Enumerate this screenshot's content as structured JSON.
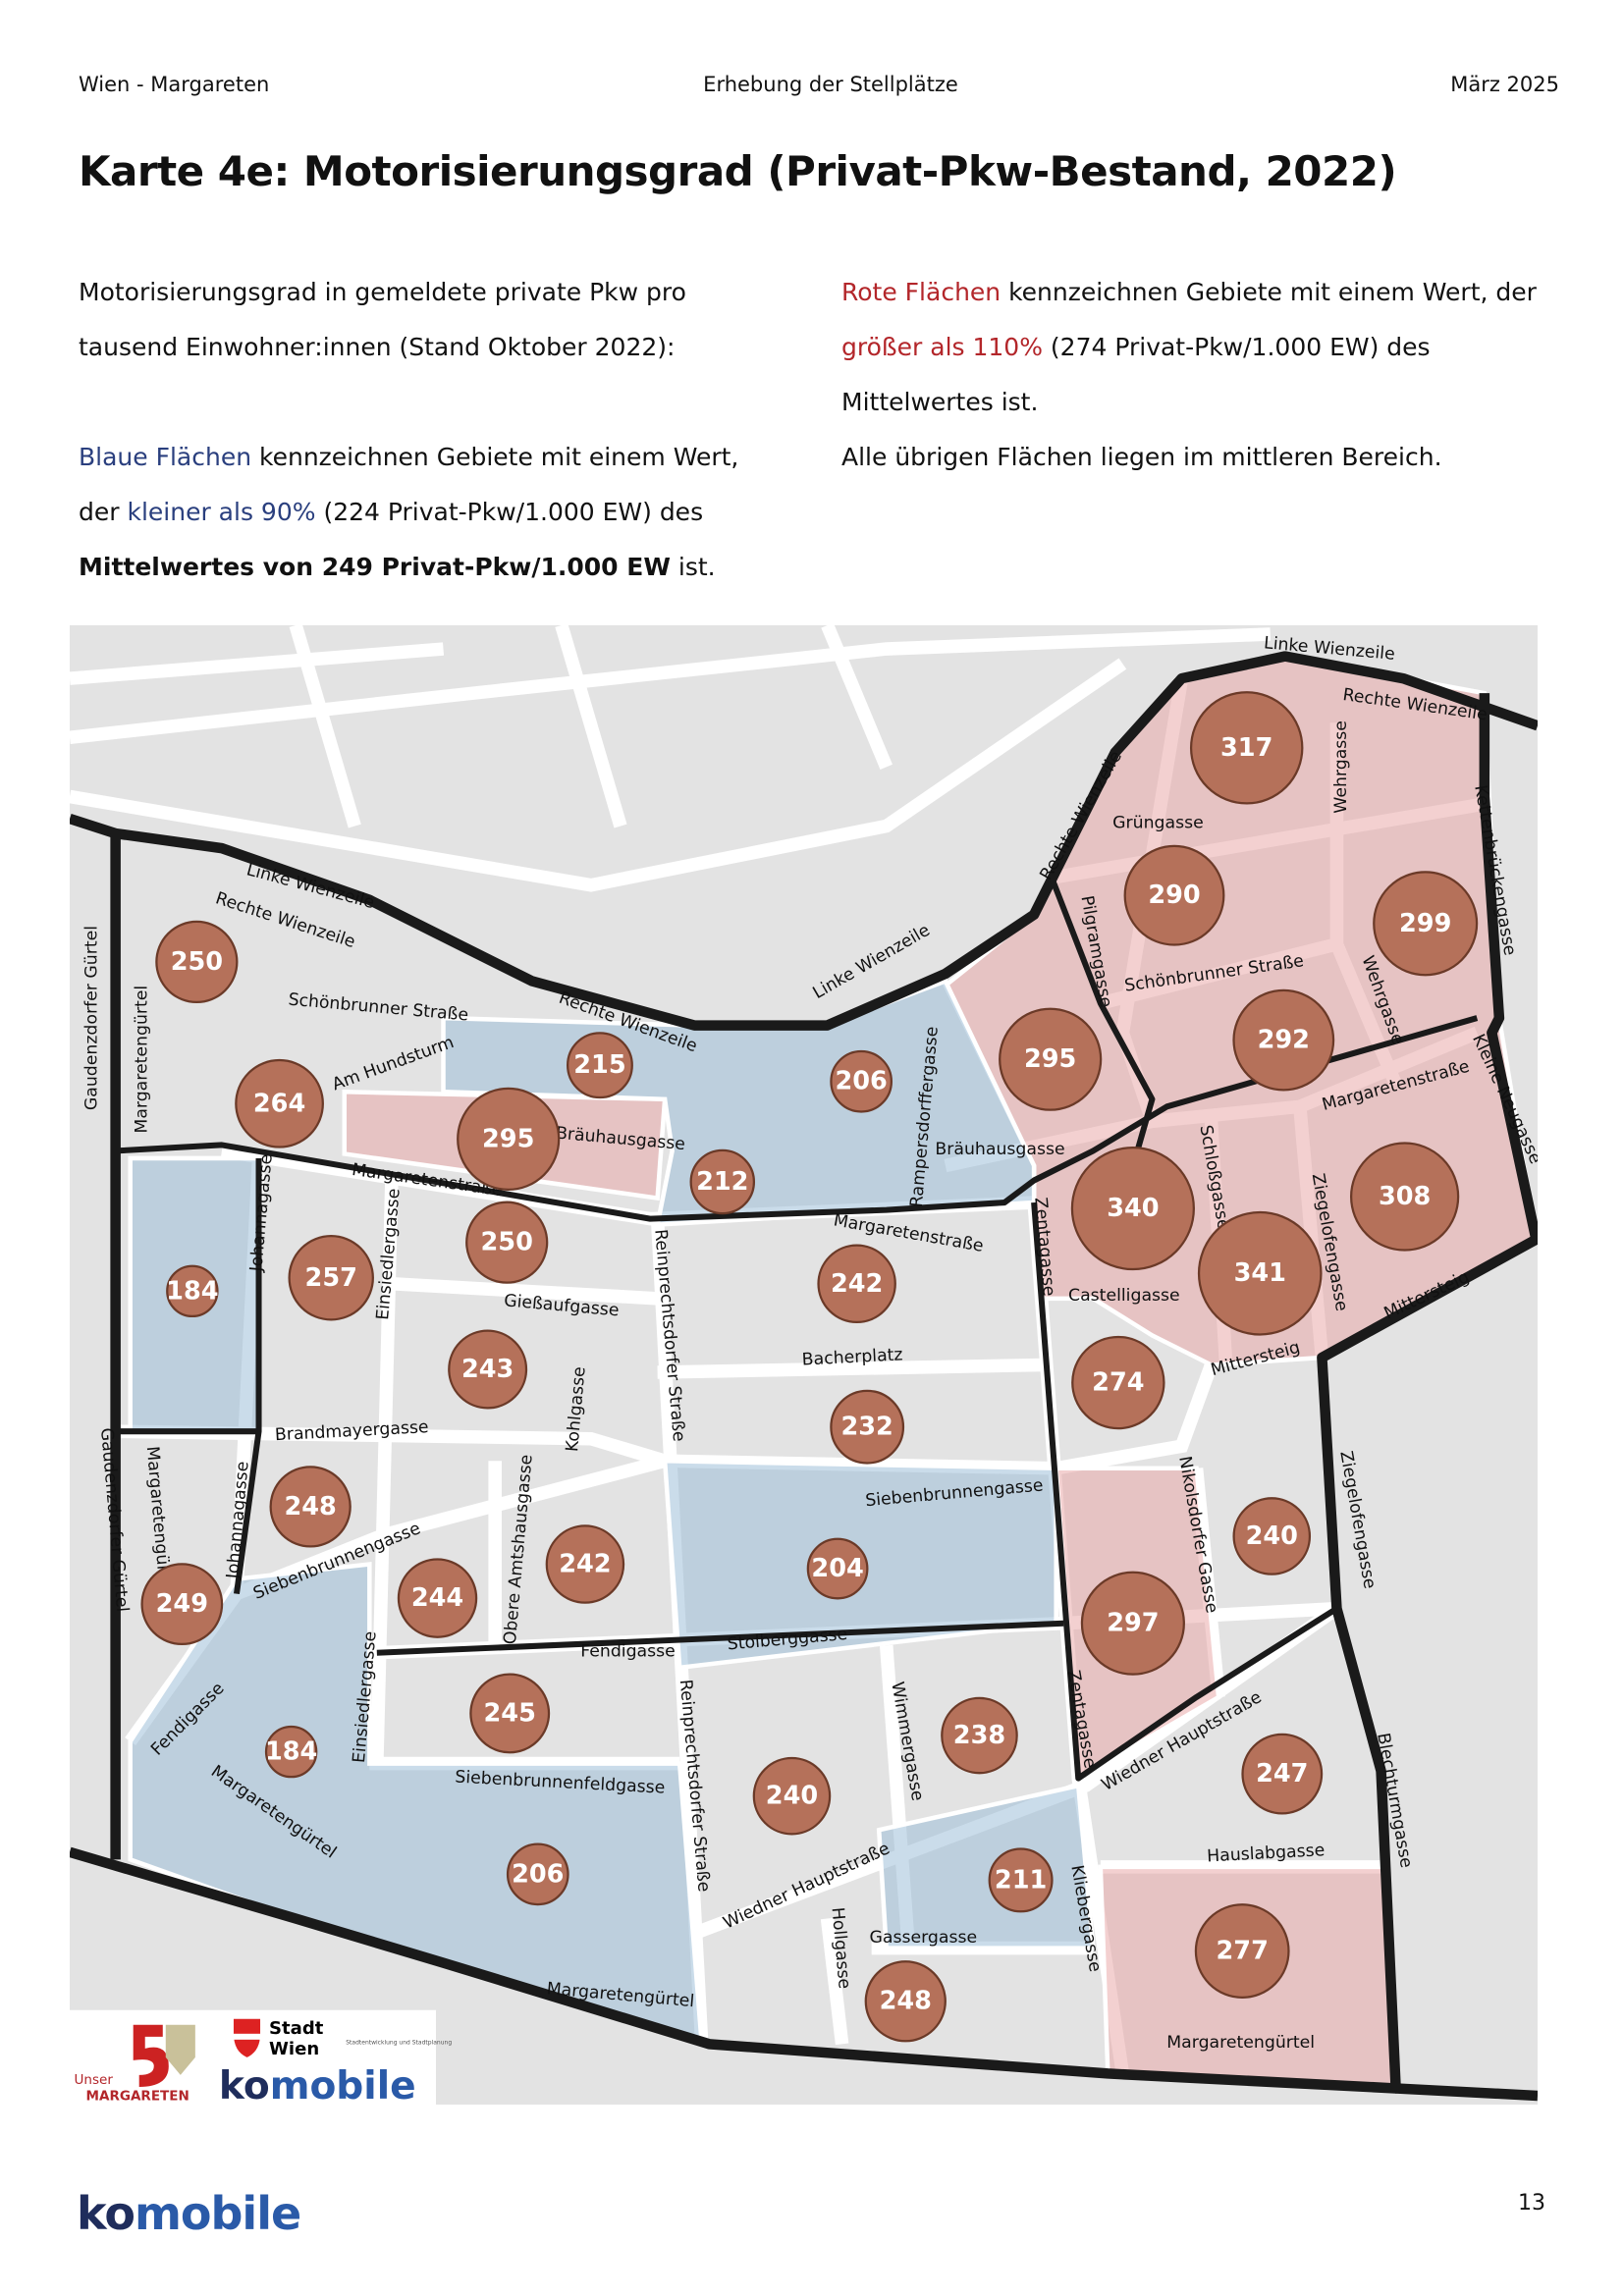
{
  "header": {
    "left": "Wien - Margareten",
    "center": "Erhebung der Stellplätze",
    "right": "März 2025"
  },
  "title": "Karte 4e: Motorisierungsgrad (Privat-Pkw-Bestand, 2022)",
  "intro": "Motorisierungsgrad in gemeldete private Pkw pro tausend Einwohner:innen (Stand Oktober 2022):",
  "blue_text": [
    "Blaue Flächen",
    " kennzeichnen Gebiete mit einem Wert, der ",
    "kleiner als 90%",
    " (224 Privat-Pkw/1.000 EW) des ",
    "Mittelwertes von 249 Privat-Pkw/1.000 EW",
    " ist."
  ],
  "red_text": [
    "Rote Flächen",
    " kennzeichnen Gebiete mit einem Wert, der ",
    "größer als 110%",
    " (274 Privat-Pkw/1.000 EW) des Mittelwertes ist."
  ],
  "other_text": "Alle übrigen Flächen liegen im mittleren Bereich.",
  "map": {
    "areas": [
      317,
      290,
      299,
      295,
      292,
      340,
      341,
      308,
      250,
      264,
      215,
      295,
      206,
      212,
      250,
      184,
      257,
      242,
      243,
      274,
      232,
      248,
      240,
      242,
      204,
      249,
      244,
      297,
      245,
      238,
      184,
      247,
      240,
      206,
      211,
      277,
      248
    ],
    "streets": [
      "Linke Wienzeile",
      "Rechte Wienzeile",
      "Wehrgasse",
      "Kettenbrückengasse",
      "Grüngasse",
      "Rechte Wienzeile",
      "Pilgramgasse",
      "Schönbrunner Straße",
      "Wehrgasse",
      "Margaretenstraße",
      "Kleine Neugasse",
      "Schloßgasse",
      "Ziegelofengasse",
      "Castelligasse",
      "Mittersteig",
      "Mittersteig",
      "Linke Wienzeile",
      "Rechte Wienzeile",
      "Gaudenzdorfer Gürtel",
      "Margaretengürtel",
      "Schönbrunner Straße",
      "Am Hundsturm",
      "Rechte Wienzeile",
      "Linke Wienzeile",
      "Bräuhausgasse",
      "Bräuhausgasse",
      "Rampersdorffergasse",
      "Margaretenstraße",
      "Margaretenstraße",
      "Johannagasse",
      "Einsiedlergasse",
      "Reinprechtsdorfer Straße",
      "Zentagasse",
      "Gießaufgasse",
      "Bacherplatz",
      "Kohlgasse",
      "Brandmayergasse",
      "Margaretengürtel",
      "Gaudenzdorfer Gürtel",
      "Johannagasse",
      "Obere Amtshausgasse",
      "Siebenbrunnengasse",
      "Siebenbrunnengasse",
      "Nikolsdorfer Gasse",
      "Ziegelofengasse",
      "Fendigasse",
      "Stolberggasse",
      "Reinprechtsdorfer Straße",
      "Wimmergasse",
      "Zentagasse",
      "Wiedner Hauptstraße",
      "Blechturmgasse",
      "Fendigasse",
      "Einsiedlergasse",
      "Margaretengürtel",
      "Siebenbrunnenfeldgasse",
      "Wiedner Hauptstraße",
      "Hollgasse",
      "Gassergasse",
      "Kliebergasse",
      "Hauslabgasse",
      "Margaretengürtel",
      "Margaretengürtel"
    ],
    "logos": {
      "unser": "Unser",
      "margareten": "MARGARETEN",
      "stadt": "Stadt",
      "wien": "Wien",
      "stadt_sub": "Stadtentwicklung und Stadtplanung",
      "ko": "ko",
      "mobile": "mobile"
    }
  },
  "footer": {
    "ko": "ko",
    "mobile": "mobile",
    "page": "13"
  }
}
